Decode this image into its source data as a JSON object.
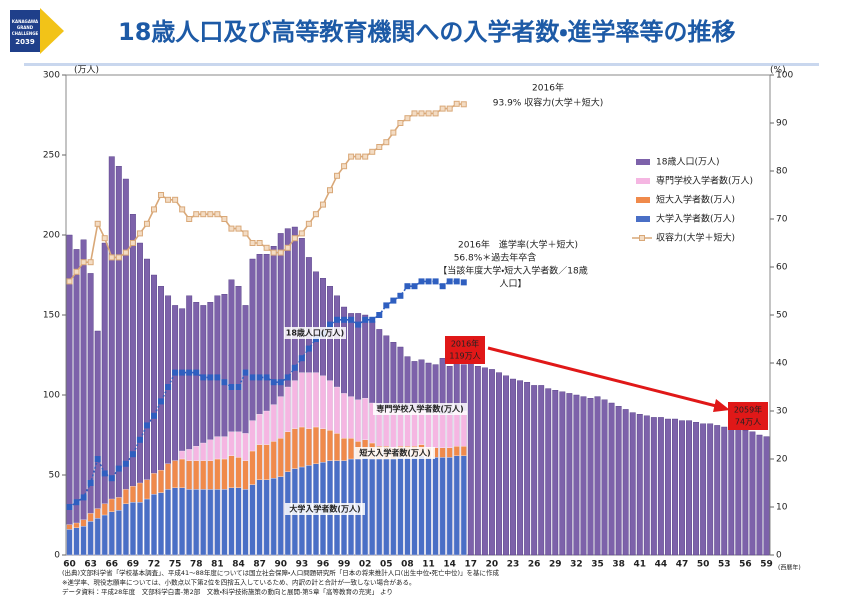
{
  "header": {
    "title": "18歳人口及び高等教育機関への入学者数・進学率等の推移",
    "logo": [
      "KANAGAWA",
      "GRAND",
      "CHALLENGE",
      "2039"
    ]
  },
  "chart_data": {
    "type": "bar",
    "y_label": "(万人)",
    "y2_label": "(%)",
    "x_label": "(西暦年)",
    "ylim": [
      0,
      300
    ],
    "yticks": [
      0,
      50,
      100,
      150,
      200,
      250,
      300
    ],
    "y2lim": [
      0,
      100
    ],
    "y2ticks": [
      0,
      10,
      20,
      30,
      40,
      50,
      60,
      70,
      80,
      90,
      100
    ],
    "categories": [
      "60",
      null,
      null,
      "63",
      null,
      null,
      "66",
      null,
      null,
      "69",
      null,
      null,
      "72",
      null,
      null,
      "75",
      null,
      null,
      "78",
      null,
      null,
      "81",
      null,
      null,
      "84",
      null,
      null,
      "87",
      null,
      null,
      "90",
      null,
      null,
      "93",
      null,
      null,
      "96",
      null,
      null,
      "99",
      null,
      null,
      "02",
      null,
      null,
      "05",
      null,
      null,
      "08",
      null,
      null,
      "11",
      null,
      null,
      "14",
      null,
      null,
      "17",
      null,
      null,
      "20",
      null,
      null,
      "23",
      null,
      null,
      "26",
      null,
      null,
      "29",
      null,
      null,
      "32",
      null,
      null,
      "35",
      null,
      null,
      "38",
      null,
      null,
      "41",
      null,
      null,
      "44",
      null,
      null,
      "47",
      null,
      null,
      "50",
      null,
      null,
      "53",
      null,
      null,
      "56",
      null,
      null,
      "59"
    ],
    "series": [
      {
        "name": "18歳人口(万人)",
        "color": "#7d62aa",
        "values": [
          200,
          191,
          197,
          176,
          140,
          195,
          249,
          243,
          235,
          213,
          195,
          185,
          175,
          168,
          162,
          156,
          154,
          162,
          158,
          156,
          158,
          162,
          163,
          172,
          168,
          156,
          185,
          188,
          188,
          193,
          201,
          204,
          205,
          198,
          186,
          177,
          173,
          168,
          162,
          155,
          151,
          151,
          150,
          146,
          141,
          137,
          133,
          130,
          124,
          121,
          122,
          120,
          119,
          123,
          118,
          120,
          119,
          120,
          118,
          117,
          116,
          114,
          112,
          110,
          109,
          108,
          106,
          106,
          104,
          103,
          102,
          101,
          100,
          99,
          98,
          99,
          97,
          95,
          93,
          91,
          89,
          88,
          87,
          86,
          86,
          85,
          85,
          84,
          84,
          83,
          82,
          82,
          81,
          80,
          80,
          79,
          78,
          77,
          75,
          74
        ]
      },
      {
        "name": "専門学校入学者数(万人)",
        "color": "#f5b6e2",
        "stacked": true,
        "values": [
          null,
          null,
          null,
          null,
          null,
          null,
          null,
          null,
          null,
          null,
          null,
          null,
          null,
          null,
          null,
          null,
          5,
          7,
          9,
          11,
          13,
          14,
          14,
          15,
          16,
          17,
          19,
          19,
          21,
          23,
          26,
          28,
          30,
          34,
          35,
          34,
          33,
          31,
          29,
          28,
          26,
          26,
          26,
          25,
          24,
          23,
          23,
          23,
          22,
          22,
          22,
          22,
          22,
          21,
          21,
          22,
          22,
          null,
          null,
          null,
          null,
          null,
          null,
          null,
          null,
          null,
          null,
          null,
          null,
          null,
          null,
          null,
          null,
          null,
          null,
          null,
          null,
          null,
          null,
          null,
          null,
          null,
          null,
          null,
          null,
          null,
          null,
          null,
          null,
          null,
          null,
          null,
          null,
          null,
          null,
          null,
          null,
          null,
          null,
          null
        ]
      },
      {
        "name": "短大入学者数(万人)",
        "color": "#f08a4b",
        "stacked": true,
        "values": [
          3,
          3,
          4,
          5,
          6,
          7,
          8,
          8,
          9,
          10,
          12,
          12,
          13,
          14,
          16,
          17,
          18,
          18,
          18,
          18,
          18,
          19,
          19,
          20,
          19,
          18,
          21,
          22,
          22,
          23,
          24,
          25,
          25,
          25,
          23,
          23,
          21,
          19,
          17,
          14,
          13,
          11,
          11,
          10,
          8,
          8,
          7,
          7,
          7,
          7,
          7,
          6,
          6,
          6,
          6,
          6,
          6,
          null,
          null,
          null,
          null,
          null,
          null,
          null,
          null,
          null,
          null,
          null,
          null,
          null,
          null,
          null,
          null,
          null,
          null,
          null,
          null,
          null,
          null,
          null,
          null,
          null,
          null,
          null,
          null,
          null,
          null,
          null,
          null,
          null,
          null,
          null,
          null,
          null,
          null,
          null,
          null,
          null,
          null,
          null
        ]
      },
      {
        "name": "大学入学者数(万人)",
        "color": "#4a6fc6",
        "stacked": true,
        "values": [
          16,
          17,
          18,
          21,
          23,
          25,
          27,
          28,
          32,
          33,
          33,
          35,
          38,
          39,
          41,
          42,
          42,
          41,
          41,
          41,
          41,
          41,
          41,
          42,
          42,
          41,
          44,
          47,
          47,
          48,
          49,
          52,
          54,
          55,
          56,
          57,
          58,
          59,
          59,
          59,
          60,
          60,
          61,
          60,
          60,
          60,
          60,
          61,
          61,
          61,
          62,
          61,
          61,
          61,
          61,
          62,
          62,
          null,
          null,
          null,
          null,
          null,
          null,
          null,
          null,
          null,
          null,
          null,
          null,
          null,
          null,
          null,
          null,
          null,
          null,
          null,
          null,
          null,
          null,
          null,
          null,
          null,
          null,
          null,
          null,
          null,
          null,
          null,
          null,
          null,
          null,
          null,
          null,
          null,
          null,
          null,
          null,
          null,
          null,
          null
        ]
      },
      {
        "name": "収容力(大学＋短大)",
        "color": "#d9a878",
        "style": "line",
        "axis": "y2",
        "values": [
          57,
          59,
          61,
          61,
          69,
          66,
          62,
          62,
          63,
          65,
          67,
          69,
          72,
          75,
          74,
          74,
          72,
          70,
          71,
          71,
          71,
          71,
          70,
          68,
          68,
          67,
          65,
          65,
          64,
          63,
          63,
          64,
          66,
          67,
          69,
          71,
          73,
          76,
          79,
          81,
          83,
          83,
          83,
          84,
          85,
          86,
          88,
          90,
          91,
          92,
          92,
          92,
          92,
          93,
          93,
          94,
          93.9,
          null,
          null,
          null,
          null,
          null,
          null,
          null,
          null,
          null,
          null,
          null,
          null,
          null,
          null,
          null,
          null,
          null,
          null,
          null,
          null,
          null,
          null,
          null,
          null,
          null,
          null,
          null,
          null,
          null,
          null,
          null,
          null,
          null,
          null,
          null,
          null,
          null,
          null,
          null,
          null,
          null,
          null,
          null
        ]
      },
      {
        "color": "#2f5fc0",
        "style": "line",
        "dashed": true,
        "axis": "y2",
        "values": [
          10,
          11,
          12,
          15,
          20,
          17,
          16,
          18,
          19,
          21,
          24,
          27,
          29,
          32,
          35,
          38,
          38,
          38,
          38,
          37,
          37,
          37,
          36,
          35,
          35,
          38,
          37,
          37,
          37,
          36,
          36,
          37,
          39,
          41,
          43,
          45,
          46,
          48,
          49,
          49,
          49,
          48,
          49,
          49,
          50,
          52,
          53,
          54,
          56,
          56,
          57,
          57,
          57,
          56,
          57,
          57,
          56.8,
          null,
          null,
          null,
          null,
          null,
          null,
          null,
          null,
          null,
          null,
          null,
          null,
          null,
          null,
          null,
          null,
          null,
          null,
          null,
          null,
          null,
          null,
          null,
          null,
          null,
          null,
          null,
          null,
          null,
          null,
          null,
          null,
          null,
          null,
          null,
          null,
          null,
          null,
          null,
          null,
          null,
          null,
          null
        ]
      }
    ],
    "annotations": [
      "2016年",
      "93.9% 収容力(大学＋短大)",
      "2016年　進学率(大学＋短大)",
      "56.8%＊過去年卒含",
      "【当該年度大学・短大入学者数／18歳",
      "人口】",
      "18歳人口(万人)",
      "専門学校入学者数(万人)",
      "短大入学者数(万人)",
      "大学入学者数(万人)",
      "2016年",
      "119万人",
      "2059年",
      "74万人"
    ],
    "notes": [
      "(出典)文部科学省「学校基本調査」、平成41～88年度については国立社会保障・人口問題研究所「日本の将来推計人口(出生中位・死亡中位)」を基に作成",
      "※進学率、現役志願率については、小数点以下第2位を四捨五入しているため、内訳の計と合計が一致しない場合がある。",
      "データ資料：平成28年度　文部科学白書-第2部　文教・科学技術施策の動向と展開-第5章「高等教育の充実」 より"
    ]
  }
}
